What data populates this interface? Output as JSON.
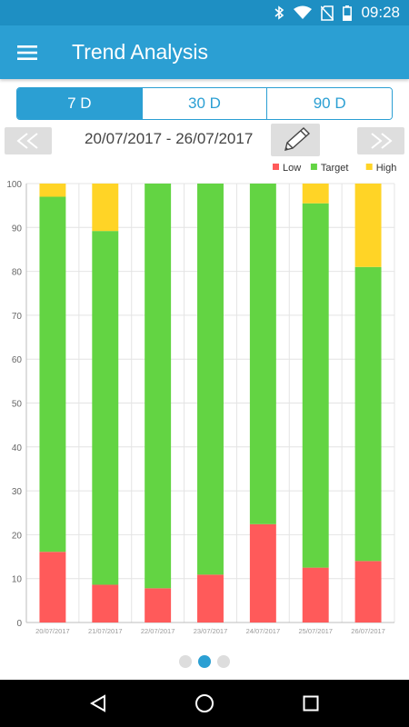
{
  "status": {
    "time": "09:28"
  },
  "appbar": {
    "title": "Trend Analysis"
  },
  "segments": [
    {
      "label": "7 D",
      "active": true
    },
    {
      "label": "30 D",
      "active": false
    },
    {
      "label": "90 D",
      "active": false
    }
  ],
  "date_range": "20/07/2017 - 26/07/2017",
  "colors": {
    "primary": "#2b9fd3",
    "low": "#ff5a5a",
    "target": "#63d443",
    "high": "#ffd426"
  },
  "chart_data": {
    "type": "bar",
    "stacked": true,
    "categories": [
      "20/07/2017",
      "21/07/2017",
      "22/07/2017",
      "23/07/2017",
      "24/07/2017",
      "25/07/2017",
      "26/07/2017"
    ],
    "series": [
      {
        "name": "Low",
        "color": "#ff5a5a",
        "values": [
          16.1,
          8.6,
          7.8,
          10.9,
          22.4,
          12.5,
          14.0
        ]
      },
      {
        "name": "Target",
        "color": "#63d443",
        "values": [
          80.9,
          80.6,
          92.2,
          89.1,
          77.6,
          83.0,
          67.0
        ]
      },
      {
        "name": "High",
        "color": "#ffd426",
        "values": [
          3.0,
          10.8,
          0,
          0,
          0,
          4.5,
          19.0
        ]
      }
    ],
    "ylim": [
      0,
      100
    ],
    "yticks": [
      0,
      10,
      20,
      30,
      40,
      50,
      60,
      70,
      80,
      90,
      100
    ],
    "legend": "top-right",
    "grid": true
  },
  "pager": {
    "pages": 3,
    "active": 1
  }
}
